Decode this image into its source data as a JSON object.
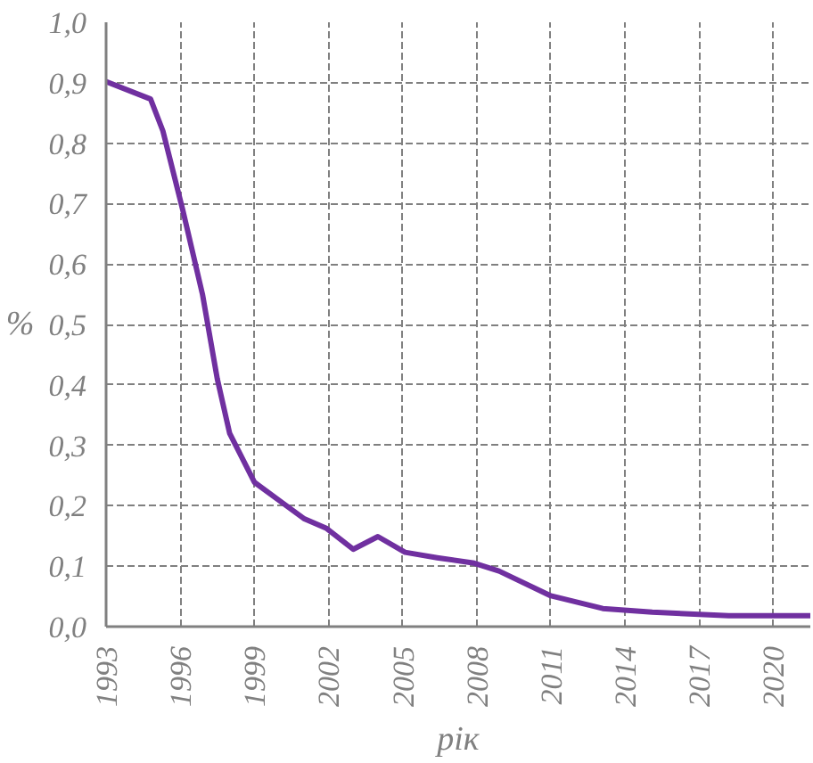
{
  "chart_data": {
    "type": "line",
    "xlabel": "рік",
    "ylabel": "%",
    "x": [
      1993,
      1994.8,
      1995.3,
      1996.1,
      1996.9,
      1997.5,
      1998.0,
      1999.0,
      2000.1,
      2001.0,
      2001.9,
      2003.0,
      2004.0,
      2005.1,
      2006.4,
      2007.9,
      2008.9,
      2011.0,
      2013.1,
      2015.1,
      2018.2,
      2021.5
    ],
    "series": [
      {
        "color": "#7030a0",
        "values": [
          0.902,
          0.873,
          0.82,
          0.69,
          0.55,
          0.41,
          0.32,
          0.239,
          0.206,
          0.179,
          0.163,
          0.128,
          0.149,
          0.123,
          0.114,
          0.105,
          0.092,
          0.051,
          0.03,
          0.024,
          0.018,
          0.018
        ]
      }
    ],
    "xlim": [
      1993,
      2021.5
    ],
    "xticks": [
      1993,
      1996,
      1999,
      2002,
      2005,
      2008,
      2011,
      2014,
      2017,
      2020
    ],
    "ylim": [
      0,
      1.0
    ],
    "yticks": [
      {
        "value": 0,
        "label": "0,0"
      },
      {
        "value": 0.1,
        "label": "0,1"
      },
      {
        "value": 0.2,
        "label": "0,2"
      },
      {
        "value": 0.3,
        "label": "0,3"
      },
      {
        "value": 0.4,
        "label": "0,4"
      },
      {
        "value": 0.5,
        "label": "0,5"
      },
      {
        "value": 0.6,
        "label": "0,6"
      },
      {
        "value": 0.7,
        "label": "0,7"
      },
      {
        "value": 0.8,
        "label": "0,8"
      },
      {
        "value": 0.9,
        "label": "0,9"
      },
      {
        "value": 1.0,
        "label": "1,0"
      }
    ],
    "grid": true,
    "line_style": "solid",
    "marker": "none"
  }
}
